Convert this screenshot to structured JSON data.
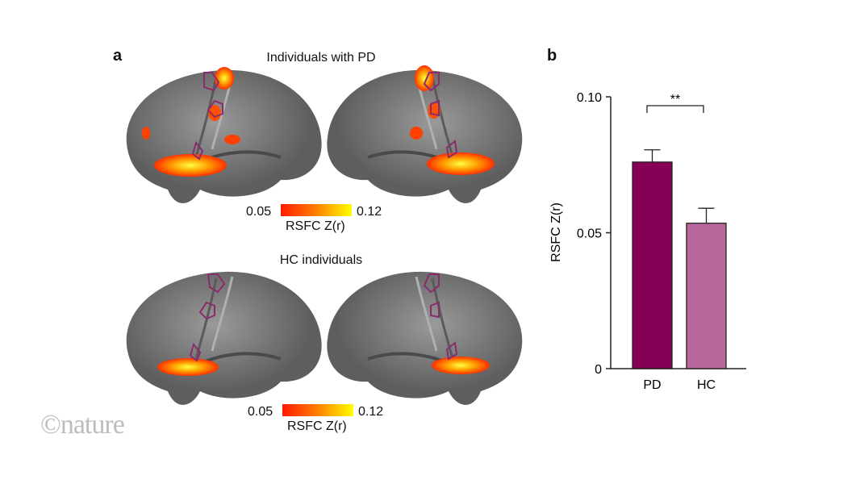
{
  "panel_a": {
    "letter": "a",
    "top_title": "Individuals with PD",
    "bottom_title": "HC individuals",
    "colorbar": {
      "min_label": "0.05",
      "max_label": "0.12",
      "label": "RSFC Z(r)",
      "colors": [
        "#ff1a00",
        "#ff8000",
        "#ffff00"
      ]
    },
    "brain_color": "#7a7a7a",
    "outline_color": "#8a2b6e"
  },
  "panel_b": {
    "letter": "b"
  },
  "chart_data": {
    "type": "bar",
    "categories": [
      "PD",
      "HC"
    ],
    "values": [
      0.076,
      0.0535
    ],
    "error_upper": [
      0.0805,
      0.059
    ],
    "colors": [
      "#870057",
      "#b8679c"
    ],
    "ylabel": "RSFC Z(r)",
    "xlabel": "",
    "ylim": [
      0,
      0.1
    ],
    "yticks": [
      0,
      0.05,
      0.1
    ],
    "ytick_labels": [
      "0",
      "0.05",
      "0.10"
    ],
    "annotation": "**",
    "grid": false
  },
  "logo": "©nature"
}
